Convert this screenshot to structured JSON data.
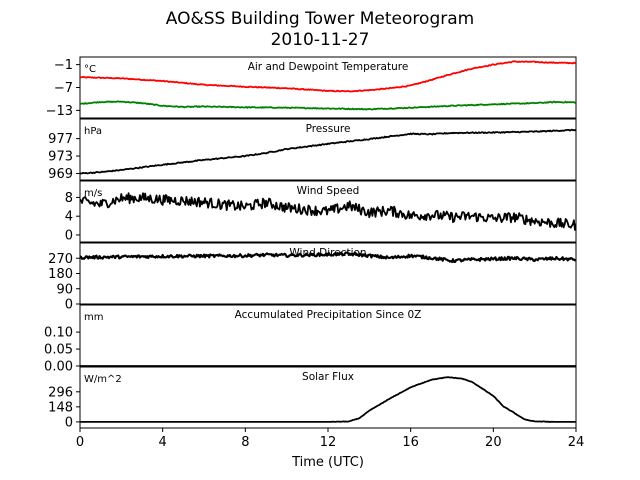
{
  "chart_data": {
    "type": "line",
    "title": "AO&SS Building Tower Meteorogram",
    "subtitle": "2010-11-27",
    "xlabel": "Time (UTC)",
    "xlim": [
      0,
      24
    ],
    "x_ticks": [
      "0",
      "4",
      "8",
      "12",
      "16",
      "20",
      "24"
    ],
    "panels": [
      {
        "title": "Air and Dewpoint Temperature",
        "unit": "°C",
        "ylim": [
          -15,
          1
        ],
        "y_ticks": [
          "−1",
          "−7",
          "−13"
        ],
        "y_tick_values": [
          -1,
          -7,
          -13
        ],
        "series": [
          {
            "color": "#ff0000",
            "x": [
              0,
              2,
              4,
              6,
              8,
              10,
              12,
              13,
              14,
              15,
              16,
              17,
              18,
              19,
              20,
              21,
              22,
              23,
              24
            ],
            "y": [
              -4.3,
              -4.6,
              -5.3,
              -6.3,
              -6.8,
              -7.2,
              -7.9,
              -8.0,
              -7.7,
              -7.2,
              -6.5,
              -5.0,
              -3.4,
              -2.0,
              -1.0,
              -0.2,
              -0.3,
              -0.5,
              -0.6
            ]
          },
          {
            "color": "#008000",
            "x": [
              0,
              1,
              2,
              3,
              4,
              5,
              6,
              8,
              10,
              12,
              14,
              16,
              18,
              20,
              22,
              23,
              24
            ],
            "y": [
              -11.3,
              -10.8,
              -10.7,
              -11.1,
              -11.8,
              -12.1,
              -12.0,
              -12.2,
              -12.3,
              -12.5,
              -12.7,
              -12.3,
              -11.8,
              -11.4,
              -11.1,
              -10.8,
              -10.9
            ]
          }
        ]
      },
      {
        "title": "Pressure",
        "unit": "hPa",
        "ylim": [
          967.5,
          981.5
        ],
        "y_ticks": [
          "977",
          "973",
          "969"
        ],
        "y_tick_values": [
          977,
          973,
          969
        ],
        "series": [
          {
            "color": "#000000",
            "x": [
              0,
              1,
              2,
              4,
              6,
              8,
              9,
              10,
              12,
              14,
              15,
              16,
              17,
              18,
              20,
              22,
              24
            ],
            "y": [
              969.0,
              969.3,
              969.8,
              971.0,
              972.1,
              973.0,
              973.7,
              974.6,
              975.8,
              976.9,
              977.5,
              978.1,
              978.0,
              978.3,
              978.4,
              978.6,
              979.0
            ]
          }
        ]
      },
      {
        "title": "Wind Speed",
        "unit": "m/s",
        "ylim": [
          -1.5,
          11.5
        ],
        "y_ticks": [
          "8",
          "4",
          "0"
        ],
        "y_tick_values": [
          8,
          4,
          0
        ],
        "series": [
          {
            "color": "#000000",
            "x": [
              0,
              1,
              2,
              3,
              4,
              5,
              6,
              7,
              8,
              9,
              10,
              11,
              12,
              13,
              14,
              15,
              16,
              17,
              18,
              19,
              20,
              21,
              22,
              23,
              24
            ],
            "y": [
              7.2,
              6.5,
              7.8,
              7.9,
              7.5,
              7.3,
              7.0,
              6.4,
              6.0,
              6.9,
              5.8,
              5.4,
              5.0,
              6.2,
              4.8,
              5.2,
              4.1,
              4.3,
              3.8,
              4.0,
              3.5,
              3.8,
              3.0,
              2.5,
              2.1
            ]
          }
        ]
      },
      {
        "title": "Wind Direction",
        "unit": "",
        "ylim": [
          0,
          360
        ],
        "y_ticks": [
          "270",
          "180",
          "90",
          "0"
        ],
        "y_tick_values": [
          270,
          180,
          90,
          0
        ],
        "series": [
          {
            "color": "#000000",
            "x": [
              0,
              2,
              4,
              6,
              8,
              9,
              10,
              12,
              13,
              14,
              15,
              16,
              17,
              18,
              19,
              20,
              21,
              22,
              23,
              24
            ],
            "y": [
              275,
              278,
              282,
              283,
              285,
              290,
              287,
              292,
              296,
              285,
              272,
              285,
              272,
              255,
              262,
              266,
              270,
              262,
              269,
              262
            ]
          }
        ]
      },
      {
        "title": "Accumulated Precipitation Since 0Z",
        "unit": "mm",
        "ylim": [
          0,
          0.18
        ],
        "y_ticks": [
          "0.10",
          "0.05",
          "0.00"
        ],
        "y_tick_values": [
          0.1,
          0.05,
          0.0
        ],
        "series": [
          {
            "color": "#000000",
            "x": [
              0,
              24
            ],
            "y": [
              0,
              0
            ]
          }
        ]
      },
      {
        "title": "Solar Flux",
        "unit": "W/m^2",
        "ylim": [
          -60,
          540
        ],
        "y_ticks": [
          "296",
          "148",
          "0"
        ],
        "y_tick_values": [
          296,
          148,
          0
        ],
        "series": [
          {
            "color": "#000000",
            "x": [
              0,
              12,
              13,
              13.5,
              14,
              15,
              16,
              17,
              17.8,
              18.5,
              19,
              20,
              20.5,
              21,
              21.5,
              22,
              23,
              24
            ],
            "y": [
              0,
              0,
              4,
              35,
              110,
              230,
              340,
              415,
              440,
              425,
              390,
              255,
              150,
              90,
              25,
              5,
              0,
              0
            ]
          }
        ]
      }
    ]
  }
}
